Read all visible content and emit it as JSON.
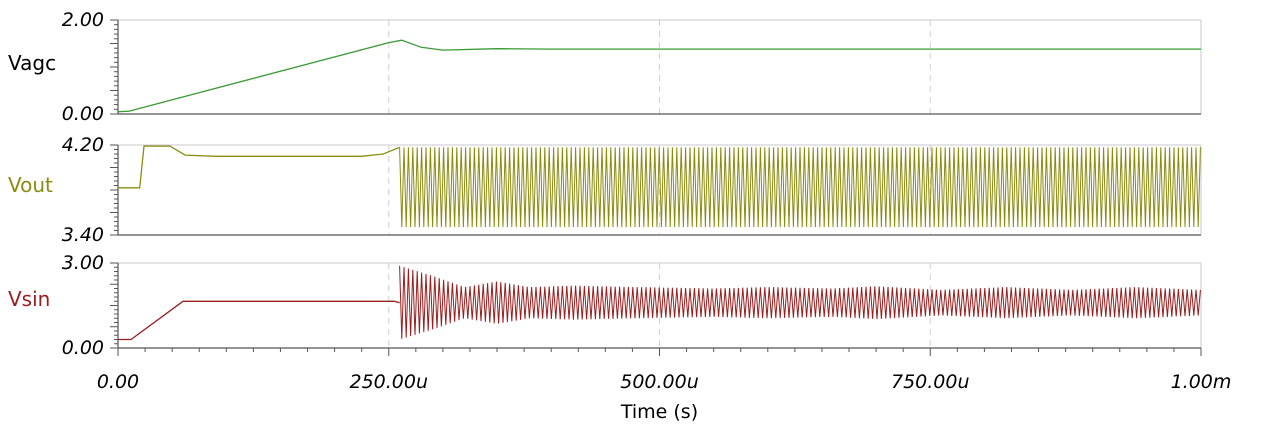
{
  "chart_data": {
    "type": "line",
    "xlabel": "Time (s)",
    "x_unit": "s",
    "xlim": [
      0,
      0.001
    ],
    "x_ticks": [
      {
        "value": 0,
        "label": "0.00"
      },
      {
        "value": 0.00025,
        "label": "250.00u"
      },
      {
        "value": 0.0005,
        "label": "500.00u"
      },
      {
        "value": 0.00075,
        "label": "750.00u"
      },
      {
        "value": 0.001,
        "label": "1.00m"
      }
    ],
    "grid": "vertical dashed at x ticks",
    "panels": [
      {
        "name": "Vagc",
        "color": "#3a9a35",
        "ylim": [
          0,
          2
        ],
        "ytick_labels": [
          "2.00",
          "0.00"
        ],
        "points": [
          [
            0,
            0.05
          ],
          [
            1e-05,
            0.06
          ],
          [
            0.00025,
            1.52
          ],
          [
            0.000262,
            1.57
          ],
          [
            0.00028,
            1.42
          ],
          [
            0.0003,
            1.36
          ],
          [
            0.00035,
            1.39
          ],
          [
            0.0004,
            1.38
          ],
          [
            0.001,
            1.38
          ]
        ]
      },
      {
        "name": "Vout",
        "color": "#8a8c10",
        "ylim": [
          3.4,
          4.2
        ],
        "ytick_labels": [
          "4.20",
          "3.40"
        ],
        "segments": [
          {
            "kind": "line",
            "points": [
              [
                0,
                3.82
              ],
              [
                2e-05,
                3.82
              ],
              [
                2.4e-05,
                4.19
              ],
              [
                4.8e-05,
                4.19
              ],
              [
                6.2e-05,
                4.11
              ],
              [
                9e-05,
                4.1
              ],
              [
                0.000225,
                4.1
              ],
              [
                0.000245,
                4.12
              ],
              [
                0.00026,
                4.18
              ]
            ]
          },
          {
            "kind": "oscillation",
            "x_start": 0.00026,
            "x_end": 0.001,
            "min": 3.47,
            "max": 4.18
          }
        ]
      },
      {
        "name": "Vsin",
        "color": "#9b1d1d",
        "ylim": [
          0,
          3
        ],
        "ytick_labels": [
          "3.00",
          "0.00"
        ],
        "segments": [
          {
            "kind": "line",
            "points": [
              [
                0,
                0.3
              ],
              [
                1.2e-05,
                0.3
              ],
              [
                6e-05,
                1.65
              ],
              [
                0.000255,
                1.65
              ],
              [
                0.00026,
                1.6
              ]
            ]
          },
          {
            "kind": "oscillation",
            "x_start": 0.00026,
            "x_end": 0.001,
            "center": 1.6,
            "envelope": [
              [
                0.00026,
                1.3
              ],
              [
                0.00029,
                0.95
              ],
              [
                0.00032,
                0.55
              ],
              [
                0.00035,
                0.75
              ],
              [
                0.00038,
                0.55
              ],
              [
                0.00042,
                0.6
              ],
              [
                0.00048,
                0.55
              ],
              [
                0.00055,
                0.5
              ],
              [
                0.0006,
                0.55
              ],
              [
                0.00066,
                0.5
              ],
              [
                0.0007,
                0.58
              ],
              [
                0.00076,
                0.45
              ],
              [
                0.00082,
                0.55
              ],
              [
                0.00088,
                0.45
              ],
              [
                0.00094,
                0.55
              ],
              [
                0.001,
                0.45
              ]
            ]
          }
        ]
      }
    ]
  }
}
